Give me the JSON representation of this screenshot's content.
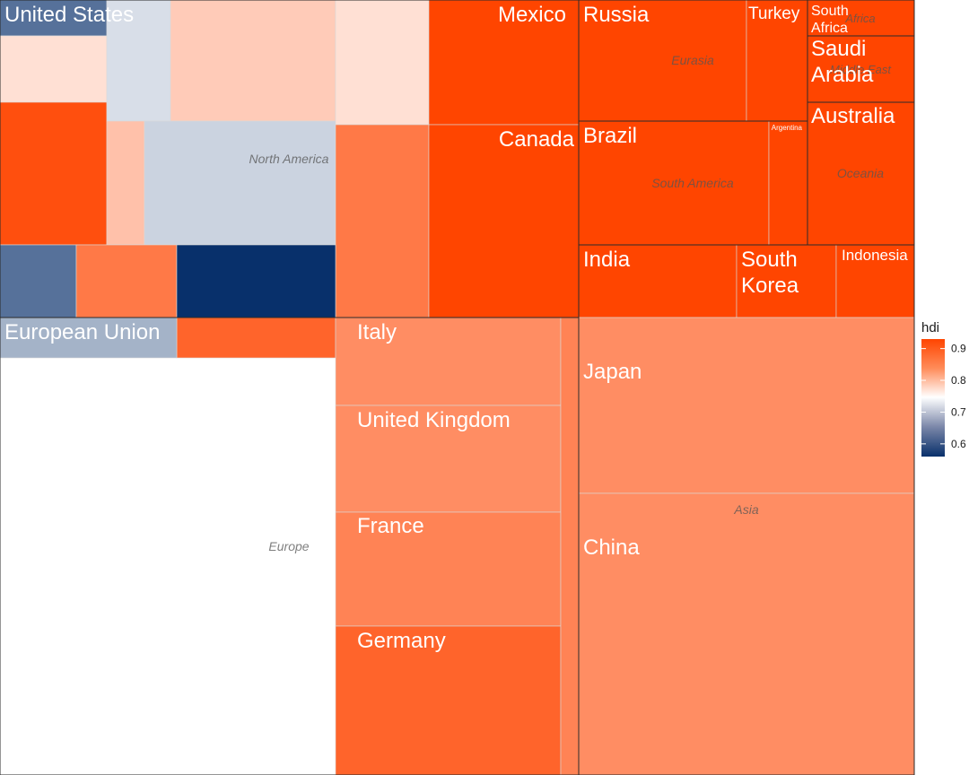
{
  "chart_data": {
    "type": "treemap",
    "title": "",
    "fill_variable": "hdi",
    "regions": [
      {
        "name": "North America",
        "countries": [
          {
            "name": "United States",
            "hdi": 0.62
          },
          {
            "name": "",
            "hdi": 0.78
          },
          {
            "name": "",
            "hdi": 0.92
          },
          {
            "name": "",
            "hdi": 0.72
          },
          {
            "name": "",
            "hdi": 0.8
          },
          {
            "name": "",
            "hdi": 0.81
          },
          {
            "name": "",
            "hdi": 0.71
          },
          {
            "name": "",
            "hdi": 0.78
          },
          {
            "name": "",
            "hdi": 0.88
          },
          {
            "name": "",
            "hdi": 0.62
          },
          {
            "name": "",
            "hdi": 0.88
          },
          {
            "name": "",
            "hdi": 0.56
          },
          {
            "name": "Mexico",
            "hdi": 0.93
          },
          {
            "name": "Canada",
            "hdi": 0.93
          }
        ]
      },
      {
        "name": "Europe",
        "countries": [
          {
            "name": "European Union",
            "hdi": 0.9
          },
          {
            "name": "",
            "hdi": 0.68
          },
          {
            "name": "Italy",
            "hdi": 0.86
          },
          {
            "name": "United Kingdom",
            "hdi": 0.86
          },
          {
            "name": "France",
            "hdi": 0.87
          },
          {
            "name": "Germany",
            "hdi": 0.9
          },
          {
            "name": "",
            "hdi": 0.87
          }
        ]
      },
      {
        "name": "Eurasia",
        "countries": [
          {
            "name": "Russia",
            "hdi": 0.93
          },
          {
            "name": "Turkey",
            "hdi": 0.93
          }
        ]
      },
      {
        "name": "Africa",
        "countries": [
          {
            "name": "South Africa",
            "hdi": 0.93
          }
        ]
      },
      {
        "name": "Middle East",
        "countries": [
          {
            "name": "Saudi Arabia",
            "hdi": 0.93
          }
        ]
      },
      {
        "name": "South America",
        "countries": [
          {
            "name": "Brazil",
            "hdi": 0.93
          },
          {
            "name": "Argentina",
            "hdi": 0.93
          }
        ]
      },
      {
        "name": "Oceania",
        "countries": [
          {
            "name": "Australia",
            "hdi": 0.93
          }
        ]
      },
      {
        "name": "Asia",
        "countries": [
          {
            "name": "India",
            "hdi": 0.93
          },
          {
            "name": "South Korea",
            "hdi": 0.93
          },
          {
            "name": "Indonesia",
            "hdi": 0.93
          },
          {
            "name": "Japan",
            "hdi": 0.86
          },
          {
            "name": "China",
            "hdi": 0.86
          }
        ]
      }
    ],
    "legend": {
      "title": "hdi",
      "placement": "right",
      "ticks": [
        0.9,
        0.8,
        0.7,
        0.6
      ],
      "range": [
        0.56,
        0.93
      ],
      "colors": {
        "low": "#08306b",
        "mid": "#ffffff",
        "high": "#ff4500",
        "midpoint": 0.75
      }
    }
  }
}
